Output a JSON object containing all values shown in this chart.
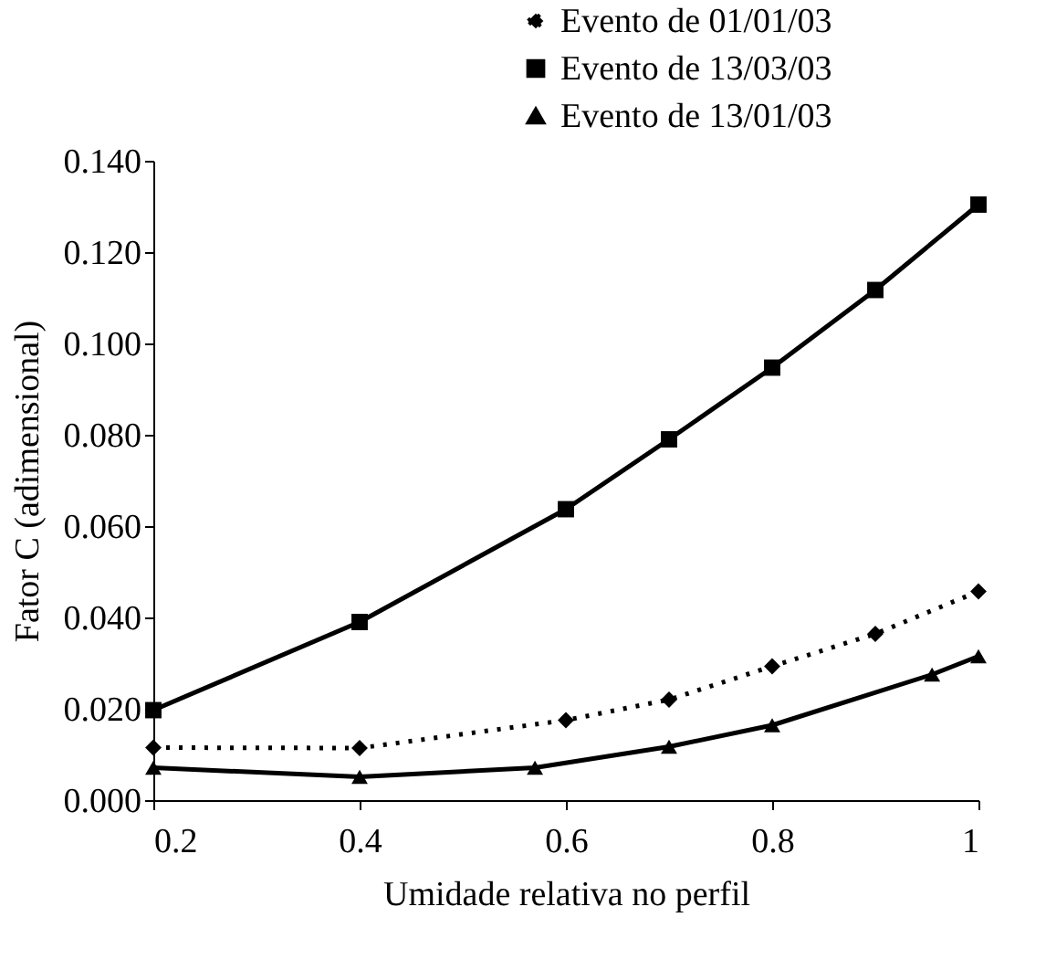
{
  "chart_data": {
    "type": "line",
    "xlabel": "Umidade relativa no perfil",
    "ylabel": "Fator C (adimensional)",
    "xlim": [
      0.2,
      1
    ],
    "xticks": [
      0.2,
      0.4,
      0.6,
      0.8,
      1
    ],
    "ylim": [
      0,
      0.14
    ],
    "yticks": [
      {
        "value": 0,
        "label": "0.000"
      },
      {
        "value": 0.02,
        "label": "0.020"
      },
      {
        "value": 0.04,
        "label": "0.040"
      },
      {
        "value": 0.06,
        "label": "0.060"
      },
      {
        "value": 0.08,
        "label": "0.080"
      },
      {
        "value": 0.1,
        "label": "0.100"
      },
      {
        "value": 0.12,
        "label": "0.120"
      },
      {
        "value": 0.14,
        "label": "0.140"
      }
    ],
    "grid": false,
    "legend": "top right",
    "series": [
      {
        "name": "Evento de 01/01/03",
        "color": "#000000",
        "marker": "diamond",
        "line_style": "dotted",
        "x": [
          0.2,
          0.4,
          0.6,
          0.7,
          0.8,
          0.9,
          1
        ],
        "values": [
          0.0115,
          0.0114,
          0.0175,
          0.022,
          0.0293,
          0.0364,
          0.0457
        ]
      },
      {
        "name": "Evento de 13/03/03",
        "color": "#000000",
        "marker": "square",
        "line_style": "solid",
        "x": [
          0.2,
          0.4,
          0.6,
          0.7,
          0.8,
          0.9,
          1
        ],
        "values": [
          0.0197,
          0.039,
          0.0637,
          0.079,
          0.0947,
          0.1117,
          0.1304
        ]
      },
      {
        "name": "Evento de 13/01/03",
        "color": "#000000",
        "marker": "triangle",
        "line_style": "solid",
        "x": [
          0.2,
          0.4,
          0.57,
          0.7,
          0.8,
          0.955,
          1
        ],
        "values": [
          0.0071,
          0.0051,
          0.0071,
          0.0117,
          0.0164,
          0.0275,
          0.0315
        ]
      }
    ]
  }
}
